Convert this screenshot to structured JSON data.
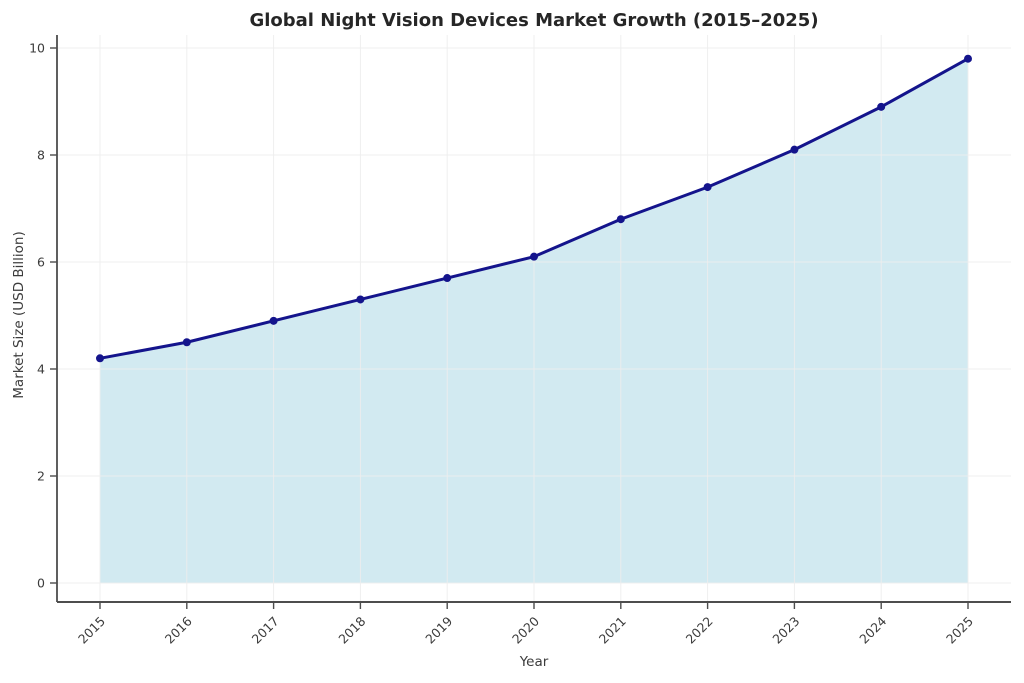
{
  "chart_data": {
    "type": "area",
    "title": "Global Night Vision Devices Market Growth (2015–2025)",
    "xlabel": "Year",
    "ylabel": "Market Size (USD Billion)",
    "categories": [
      "2015",
      "2016",
      "2017",
      "2018",
      "2019",
      "2020",
      "2021",
      "2022",
      "2023",
      "2024",
      "2025"
    ],
    "values": [
      4.2,
      4.5,
      4.9,
      5.3,
      5.7,
      6.1,
      6.8,
      7.4,
      8.1,
      8.9,
      9.8
    ],
    "yticks": [
      0,
      2,
      4,
      6,
      8,
      10
    ],
    "ylim": [
      0,
      10
    ],
    "grid": true,
    "legend_position": "none",
    "colors": {
      "line": "#14148C",
      "marker": "#14148C",
      "fill": "#ADD8E6",
      "fill_opacity": 0.55,
      "grid": "#EDEDED",
      "spine": "#4D4D4D",
      "tick_label": "#3C3C3C",
      "axis_label": "#3C3C3C",
      "title": "#262626",
      "background": "#FFFFFF"
    }
  }
}
